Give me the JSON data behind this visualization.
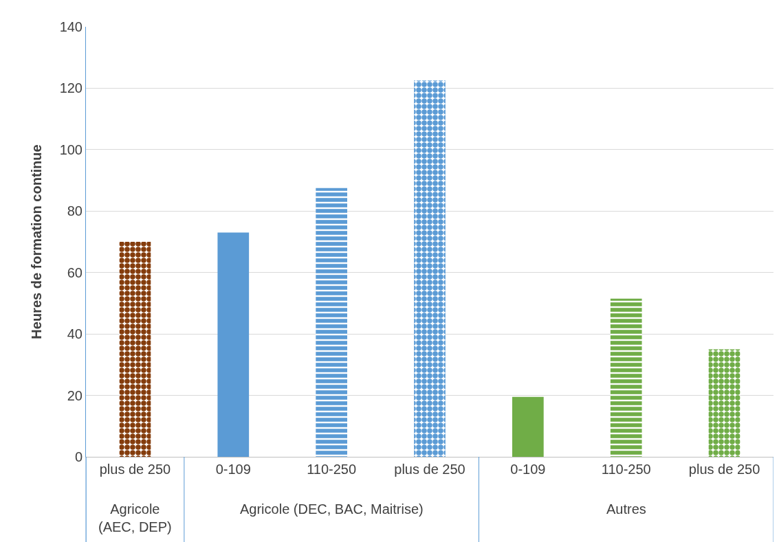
{
  "chart_data": {
    "type": "bar",
    "ylabel": "Heures de formation continue",
    "categories": [
      "plus de 250",
      "0-109",
      "110-250",
      "plus de 250",
      "0-109",
      "110-250",
      "plus de 250"
    ],
    "annotations": [
      "Agricole (AEC, DEP)",
      "Agricole (DEC, BAC, Maitrise)",
      "Autres"
    ],
    "series": [
      {
        "color": "#843c0c",
        "values": [
          70,
          null,
          null,
          null,
          null,
          null,
          null
        ]
      },
      {
        "color": "#5b9bd5",
        "values": [
          null,
          73,
          87.5,
          122.5,
          null,
          null,
          null
        ]
      },
      {
        "color": "#70ad47",
        "values": [
          null,
          null,
          null,
          null,
          19.5,
          51.5,
          35
        ]
      }
    ],
    "ylim": [
      0,
      140
    ],
    "yticks": [
      0,
      20,
      40,
      60,
      80,
      100,
      120,
      140
    ],
    "grid": "y",
    "legend": false
  }
}
